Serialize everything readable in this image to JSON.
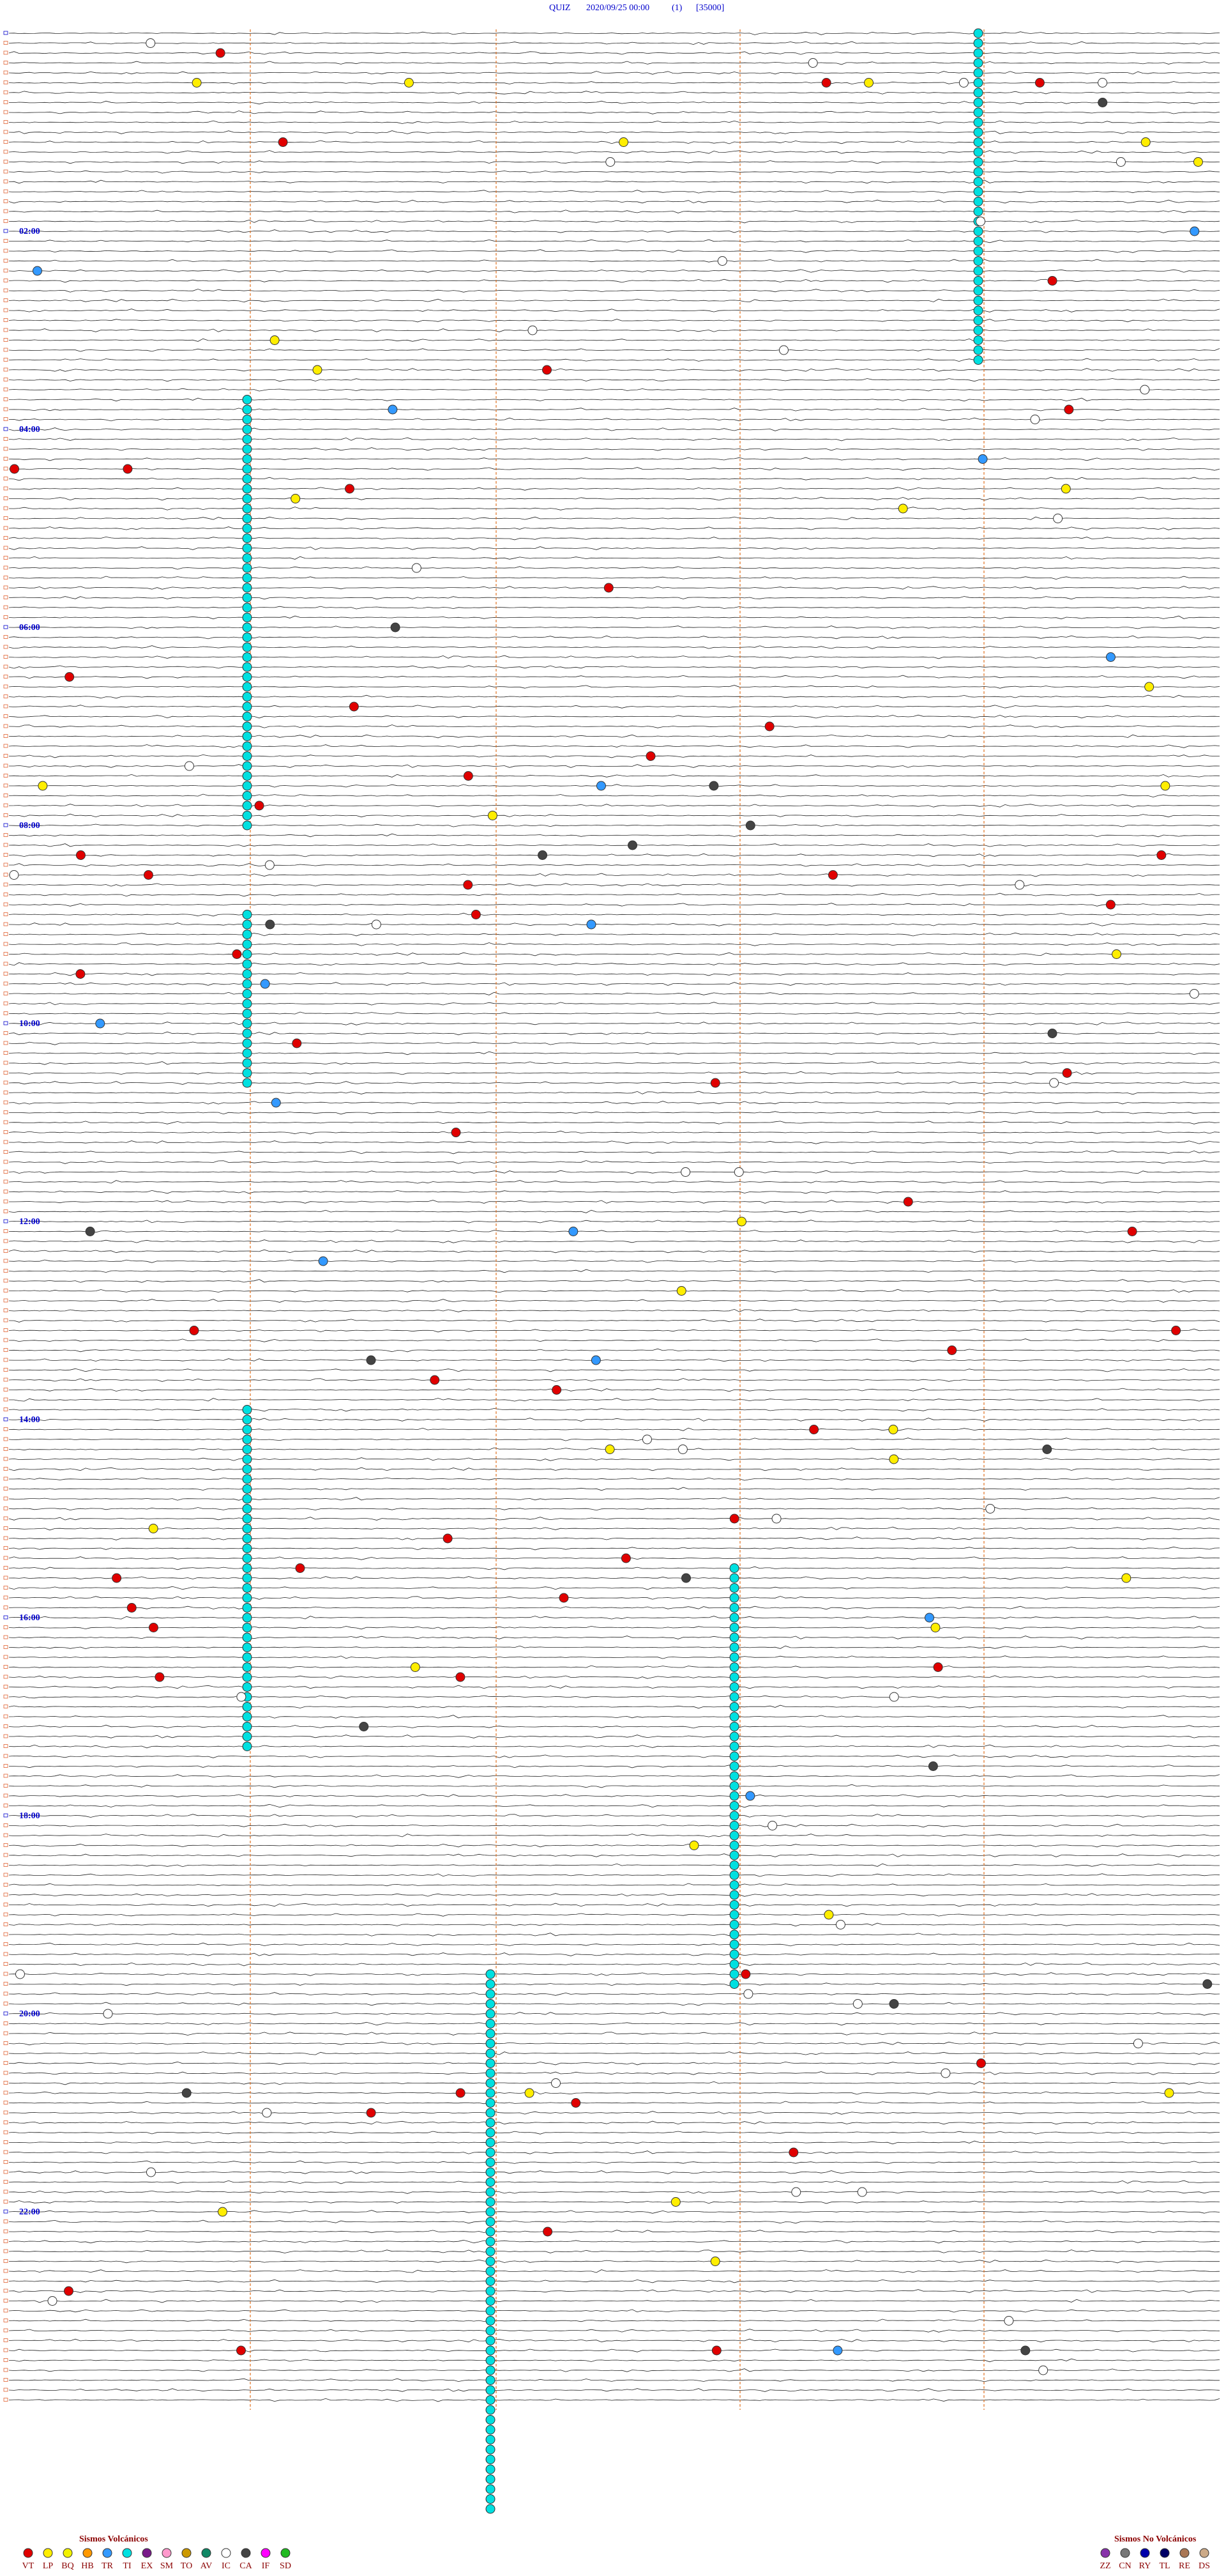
{
  "header": {
    "title": "QUIZ",
    "date": "2020/09/25 00:00",
    "channel": "(1)",
    "scale": "[35000]"
  },
  "time_labels": [
    "02:00",
    "04:00",
    "06:00",
    "08:00",
    "10:00",
    "12:00",
    "14:00",
    "16:00",
    "18:00",
    "20:00",
    "22:00"
  ],
  "legend": {
    "volcanic": {
      "title": "Sismos Volcánicos",
      "items": [
        {
          "code": "VT",
          "color": "#e00000"
        },
        {
          "code": "LP",
          "color": "#ffee00"
        },
        {
          "code": "BQ",
          "color": "#f2f200"
        },
        {
          "code": "HB",
          "color": "#ff9900"
        },
        {
          "code": "TR",
          "color": "#3399ff"
        },
        {
          "code": "TI",
          "color": "#00e0e0"
        },
        {
          "code": "EX",
          "color": "#7a1a8a"
        },
        {
          "code": "SM",
          "color": "#ff99cc"
        },
        {
          "code": "TO",
          "color": "#cc9900"
        },
        {
          "code": "AV",
          "color": "#118866"
        },
        {
          "code": "IC",
          "color": "#ffffff"
        },
        {
          "code": "CA",
          "color": "#444444"
        },
        {
          "code": "IF",
          "color": "#ff00ff"
        },
        {
          "code": "SD",
          "color": "#22bb22"
        }
      ]
    },
    "non_volcanic": {
      "title": "Sismos No Volcánicos",
      "items": [
        {
          "code": "ZZ",
          "color": "#8833aa"
        },
        {
          "code": "CN",
          "color": "#777777"
        },
        {
          "code": "RY",
          "color": "#0000aa"
        },
        {
          "code": "TL",
          "color": "#000066"
        },
        {
          "code": "RE",
          "color": "#aa7755"
        },
        {
          "code": "DS",
          "color": "#ccaa88"
        }
      ]
    }
  }
}
